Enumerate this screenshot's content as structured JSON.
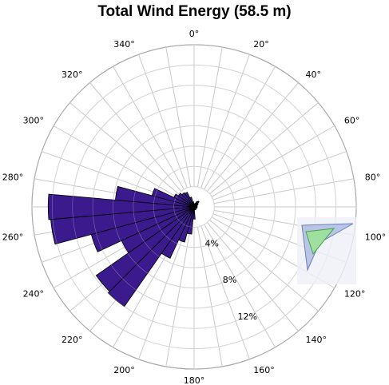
{
  "chart_data": {
    "type": "polar-bar",
    "title": "Total Wind Energy (58.5 m)",
    "sector_width_deg": 10,
    "r_max_percent": 16,
    "rings_percent": [
      2,
      4,
      6,
      8,
      10,
      12,
      14,
      16
    ],
    "ring_labels": [
      "4%",
      "8%",
      "12%"
    ],
    "ring_label_values": [
      4,
      8,
      12
    ],
    "direction_labels": [
      "0°",
      "20°",
      "40°",
      "60°",
      "80°",
      "100°",
      "120°",
      "140°",
      "160°",
      "180°",
      "200°",
      "220°",
      "240°",
      "260°",
      "280°",
      "300°",
      "320°",
      "340°"
    ],
    "direction_label_angles": [
      0,
      20,
      40,
      60,
      80,
      100,
      120,
      140,
      160,
      180,
      200,
      220,
      240,
      260,
      280,
      300,
      320,
      340
    ],
    "directions": [
      0,
      10,
      20,
      30,
      40,
      50,
      60,
      70,
      80,
      90,
      100,
      110,
      120,
      130,
      140,
      150,
      160,
      170,
      180,
      190,
      200,
      210,
      220,
      230,
      240,
      250,
      260,
      270,
      280,
      290,
      300,
      310,
      320,
      330,
      340,
      350
    ],
    "values": [
      0.3,
      0.3,
      0.4,
      0.6,
      0.7,
      0.5,
      0.4,
      0.3,
      0.3,
      0.3,
      0.3,
      0.3,
      0.2,
      0.2,
      0.3,
      0.3,
      0.3,
      0.3,
      1.2,
      2.7,
      3.6,
      5.6,
      12.0,
      11.8,
      7.9,
      10.5,
      14.2,
      14.4,
      7.8,
      4.3,
      2.2,
      1.9,
      1.7,
      1.6,
      1.0,
      0.5
    ],
    "bar_color": "#3a1a8c",
    "bar_outline": "#000000",
    "grid_color": "#c8c8c8",
    "grid": true
  }
}
